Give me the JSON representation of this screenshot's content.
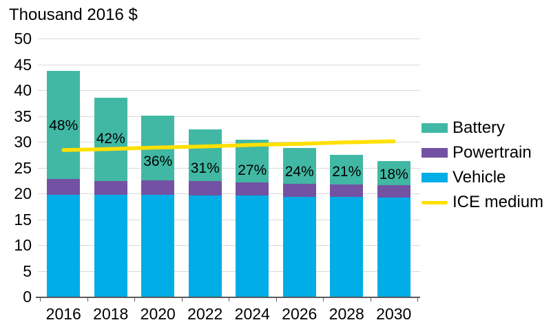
{
  "title": "Thousand 2016 $",
  "chart_data": {
    "type": "bar",
    "stacked": true,
    "title": "Thousand 2016 $",
    "xlabel": "",
    "ylabel": "Thousand 2016 $",
    "categories": [
      "2016",
      "2018",
      "2020",
      "2022",
      "2024",
      "2026",
      "2028",
      "2030"
    ],
    "series": [
      {
        "name": "Vehicle",
        "color": "#00ade6",
        "values": [
          19.8,
          19.7,
          19.7,
          19.6,
          19.6,
          19.4,
          19.3,
          19.2
        ]
      },
      {
        "name": "Powertrain",
        "color": "#7452a3",
        "values": [
          3.0,
          2.7,
          2.8,
          2.8,
          2.6,
          2.5,
          2.4,
          2.4
        ]
      },
      {
        "name": "Battery",
        "color": "#41b8a4",
        "values": [
          21.0,
          16.2,
          12.6,
          10.0,
          8.2,
          6.9,
          5.8,
          4.7
        ]
      }
    ],
    "totals": [
      43.8,
      38.6,
      35.1,
      32.4,
      30.4,
      28.8,
      27.5,
      26.3
    ],
    "line_series": {
      "name": "ICE medium",
      "color": "#ffe000",
      "values": [
        28.4,
        28.6,
        28.9,
        29.1,
        29.4,
        29.6,
        29.9,
        30.1
      ]
    },
    "bar_labels": {
      "texts": [
        "48%",
        "42%",
        "36%",
        "31%",
        "27%",
        "24%",
        "21%",
        "18%"
      ],
      "y_values": [
        33.1,
        30.5,
        26.1,
        24.8,
        24.4,
        24.1,
        24.1,
        23.6
      ]
    },
    "ylim": [
      0,
      50
    ],
    "ytick_step": 5,
    "grid": true,
    "legend_position": "right"
  },
  "legend": {
    "items": [
      {
        "label": "Battery",
        "color": "#41b8a4",
        "swatch": "box"
      },
      {
        "label": "Powertrain",
        "color": "#7452a3",
        "swatch": "box"
      },
      {
        "label": "Vehicle",
        "color": "#00ade6",
        "swatch": "box"
      },
      {
        "label": "ICE medium",
        "color": "#ffe000",
        "swatch": "line"
      }
    ]
  },
  "colors": {
    "battery": "#41b8a4",
    "powertrain": "#7452a3",
    "vehicle": "#00ade6",
    "ice_line": "#ffe000",
    "gridline": "#d9d9d9",
    "axis": "#595959",
    "text": "#000000",
    "background": "#ffffff"
  }
}
